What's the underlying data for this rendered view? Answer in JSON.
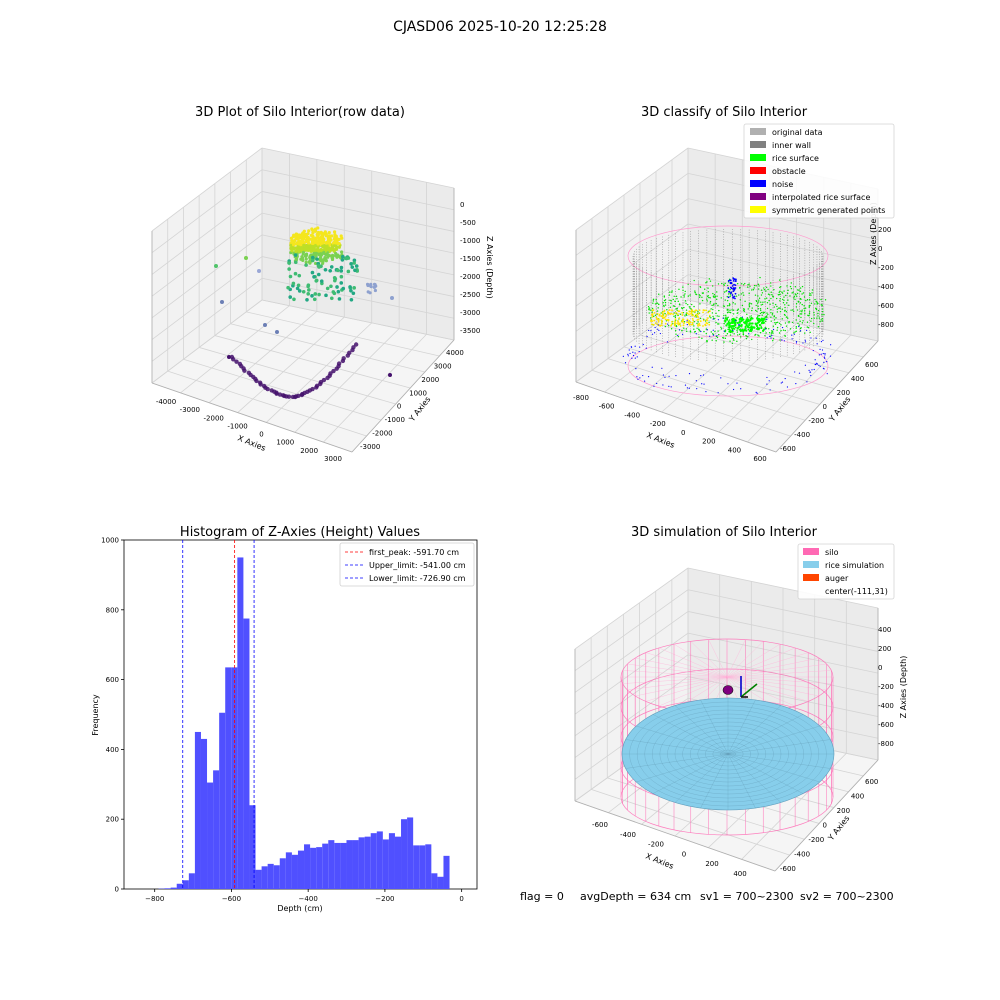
{
  "suptitle": "CJASD06 2025-10-20 12:25:28",
  "panels": {
    "raw": {
      "title": "3D Plot of Silo Interior(row data)",
      "xlabel": "X Axies",
      "ylabel": "Y Axies",
      "zlabel": "Z Axies (Depth)",
      "xticks": [
        "-4000",
        "-3000",
        "-2000",
        "-1000",
        "0",
        "1000",
        "2000",
        "3000"
      ],
      "yticks": [
        "-3000",
        "-2000",
        "-1000",
        "0",
        "1000",
        "2000",
        "3000",
        "4000"
      ],
      "zticks": [
        "0",
        "-500",
        "-1000",
        "-1500",
        "-2000",
        "-2500",
        "-3000",
        "-3500"
      ]
    },
    "classify": {
      "title": "3D classify of Silo Interior",
      "xlabel": "X Axies",
      "ylabel": "Y Axies",
      "zlabel": "Z Axies (Depth)",
      "xticks": [
        "-800",
        "-600",
        "-400",
        "-200",
        "0",
        "200",
        "400",
        "600"
      ],
      "yticks": [
        "-600",
        "-400",
        "-200",
        "0",
        "200",
        "400",
        "600"
      ],
      "zticks": [
        "200",
        "0",
        "-200",
        "-400",
        "-600",
        "-800"
      ],
      "zticks_partial": [
        "0"
      ],
      "legend": [
        {
          "label": "original data",
          "color": "#b0b0b0"
        },
        {
          "label": "inner wall",
          "color": "#808080"
        },
        {
          "label": "rice surface",
          "color": "#00ff00"
        },
        {
          "label": "obstacle",
          "color": "#ff0000"
        },
        {
          "label": "noise",
          "color": "#0000ff"
        },
        {
          "label": "interpolated rice surface",
          "color": "#800080"
        },
        {
          "label": "symmetric generated points",
          "color": "#ffff00"
        }
      ]
    },
    "histogram": {
      "title": "Histogram of Z-Axies (Height) Values",
      "xlabel": "Depth (cm)",
      "ylabel": "Frequency",
      "legend": [
        {
          "label": "first_peak: -591.70 cm",
          "color": "#ff0000"
        },
        {
          "label": "Upper_limit: -541.00 cm",
          "color": "#0000ff"
        },
        {
          "label": "Lower_limit: -726.90 cm",
          "color": "#0000ff"
        }
      ]
    },
    "simulation": {
      "title": "3D simulation of Silo Interior",
      "xlabel": "X Axies",
      "ylabel": "Y Axies",
      "zlabel": "Z Axies (Depth)",
      "xticks": [
        "-600",
        "-400",
        "-200",
        "0",
        "200",
        "400"
      ],
      "yticks": [
        "-600",
        "-400",
        "-200",
        "0",
        "200",
        "400",
        "600"
      ],
      "zticks": [
        "400",
        "200",
        "0",
        "-200",
        "-400",
        "-600",
        "-800"
      ],
      "legend": [
        {
          "label": "silo",
          "color": "#ff69b4"
        },
        {
          "label": "rice simulation",
          "color": "#87ceeb"
        },
        {
          "label": "auger",
          "color": "#ff4500"
        },
        {
          "label": "center(-111,31)",
          "color": "none"
        }
      ]
    }
  },
  "footer": {
    "flag": "flag = 0",
    "avg": "avgDepth = 634 cm",
    "sv1": "sv1 = 700~2300",
    "sv2": "sv2 = 700~2300"
  },
  "chart_data": [
    {
      "type": "bar",
      "title": "Histogram of Z-Axies (Height) Values",
      "xlabel": "Depth (cm)",
      "ylabel": "Frequency",
      "xlim": [
        -880,
        40
      ],
      "ylim": [
        0,
        1000
      ],
      "xticks": [
        -800,
        -600,
        -400,
        -200,
        0
      ],
      "yticks": [
        0,
        200,
        400,
        600,
        800,
        1000
      ],
      "bin_width": 15.8,
      "bin_start": -790,
      "values": [
        1,
        2,
        4,
        15,
        25,
        45,
        450,
        430,
        305,
        340,
        505,
        635,
        635,
        950,
        775,
        240,
        55,
        65,
        72,
        68,
        88,
        105,
        98,
        110,
        128,
        118,
        120,
        130,
        140,
        132,
        132,
        140,
        140,
        148,
        150,
        160,
        165,
        142,
        160,
        150,
        200,
        205,
        125,
        125,
        128,
        45,
        35,
        95
      ],
      "markers": [
        {
          "label": "first_peak: -591.70 cm",
          "x": -591.7,
          "color": "#ff0000"
        },
        {
          "label": "Upper_limit: -541.00 cm",
          "x": -541.0,
          "color": "#0000ff"
        },
        {
          "label": "Lower_limit: -726.90 cm",
          "x": -726.9,
          "color": "#0000ff"
        }
      ],
      "bar_color": "#5050ff"
    }
  ]
}
